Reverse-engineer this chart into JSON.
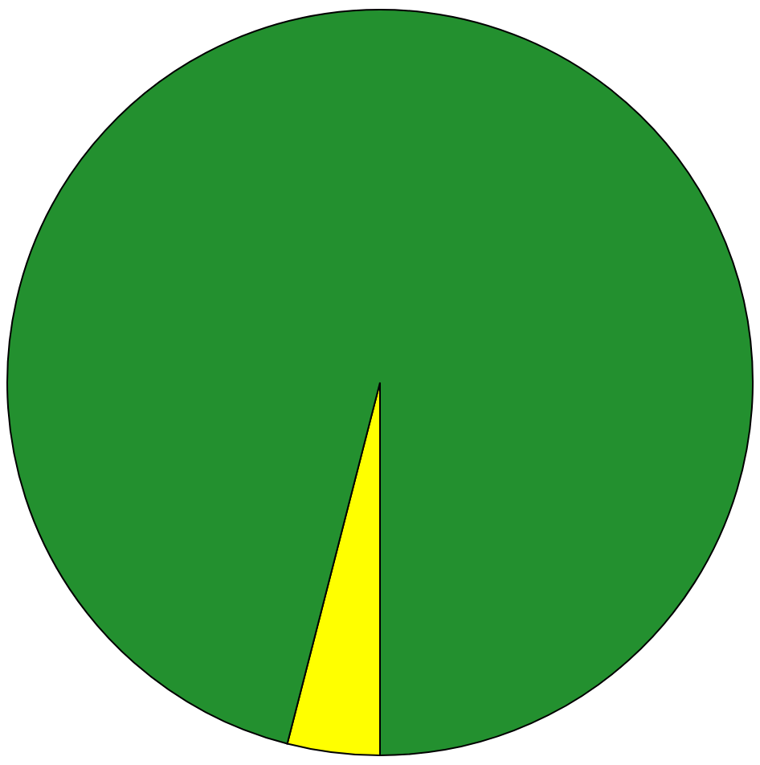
{
  "chart_data": {
    "type": "pie",
    "categories": [
      null,
      null
    ],
    "values": [
      4,
      96
    ],
    "colors": [
      "#ffff00",
      "#23902f"
    ]
  }
}
